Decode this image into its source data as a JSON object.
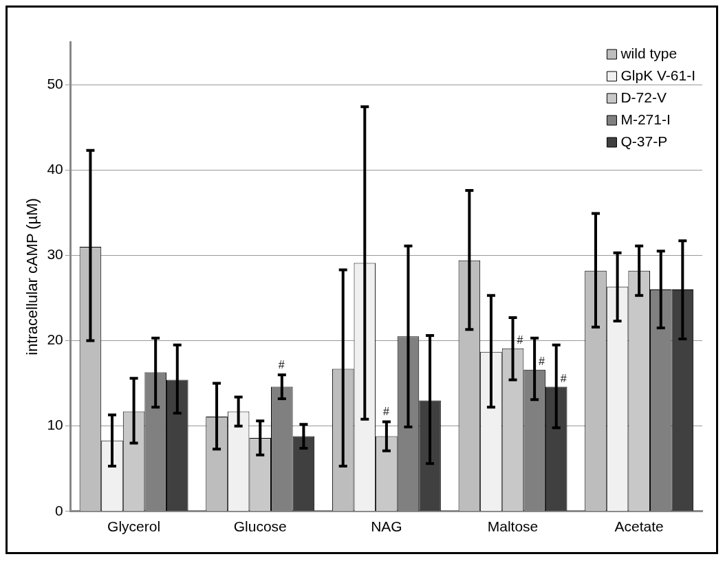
{
  "chart_data": {
    "type": "bar",
    "ylabel": "intracellular cAMP (µM)",
    "categories": [
      "Glycerol",
      "Glucose",
      "NAG",
      "Maltose",
      "Acetate"
    ],
    "ylim": [
      0,
      55
    ],
    "yticks": [
      0,
      10,
      20,
      30,
      40,
      50
    ],
    "grid": "y",
    "legend": "top right",
    "series": [
      {
        "name": "wild type",
        "color": "#bdbdbd",
        "values": [
          31,
          11.1,
          16.7,
          29.4,
          28.2
        ],
        "errors": [
          [
            20,
            42.3
          ],
          [
            7.3,
            15
          ],
          [
            5.3,
            28.3
          ],
          [
            21.3,
            37.6
          ],
          [
            21.6,
            34.9
          ]
        ]
      },
      {
        "name": "GlpK V-61-I",
        "color": "#f0f0f0",
        "values": [
          8.3,
          11.7,
          29.1,
          18.7,
          26.3
        ],
        "errors": [
          [
            5.3,
            11.3
          ],
          [
            10,
            13.4
          ],
          [
            10.8,
            47.4
          ],
          [
            12.2,
            25.3
          ],
          [
            22.3,
            30.3
          ]
        ]
      },
      {
        "name": "D-72-V",
        "color": "#c8c8c8",
        "values": [
          11.7,
          8.6,
          8.8,
          19.1,
          28.2
        ],
        "errors": [
          [
            8,
            15.6
          ],
          [
            6.6,
            10.6
          ],
          [
            7.1,
            10.5
          ],
          [
            15.4,
            22.7
          ],
          [
            25.3,
            31.1
          ]
        ],
        "value_labels": [
          null,
          null,
          "#",
          "#",
          null
        ]
      },
      {
        "name": "M-271-I",
        "color": "#808080",
        "values": [
          16.3,
          14.6,
          20.5,
          16.6,
          26
        ],
        "errors": [
          [
            12.2,
            20.3
          ],
          [
            13.2,
            16
          ],
          [
            9.9,
            31.1
          ],
          [
            13.1,
            20.3
          ],
          [
            21.5,
            30.5
          ]
        ],
        "value_labels": [
          null,
          "#",
          null,
          "#",
          null
        ]
      },
      {
        "name": "Q-37-P",
        "color": "#404040",
        "values": [
          15.4,
          8.8,
          13,
          14.6,
          26
        ],
        "errors": [
          [
            11.5,
            19.5
          ],
          [
            7.4,
            10.2
          ],
          [
            5.6,
            20.6
          ],
          [
            9.8,
            19.5
          ],
          [
            20.2,
            31.7
          ]
        ],
        "value_labels": [
          null,
          null,
          null,
          "#",
          null
        ]
      }
    ]
  }
}
